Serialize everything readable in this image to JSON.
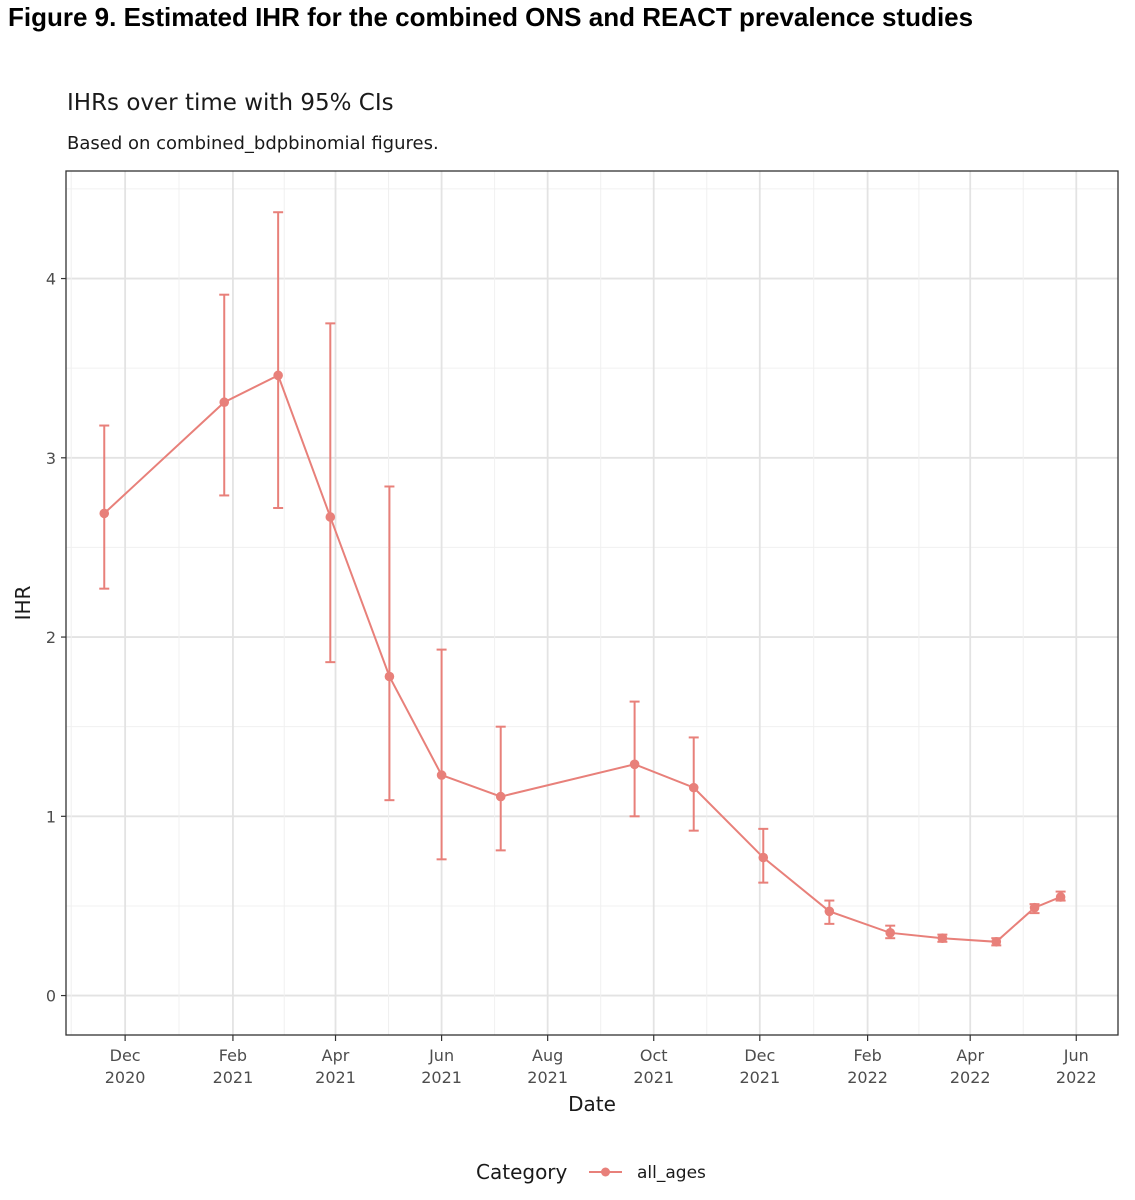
{
  "figure_title": "Figure 9. Estimated IHR for the combined ONS and REACT prevalence studies",
  "chart_data": {
    "type": "line",
    "title": "IHRs over time with 95% CIs",
    "subtitle": "Based on combined_bdpbinomial figures.",
    "xlabel": "Date",
    "ylabel": "IHR",
    "xlim": [
      "2020-10-28",
      "2022-06-25"
    ],
    "ylim": [
      -0.22,
      4.6
    ],
    "y_ticks": [
      0,
      1,
      2,
      3,
      4
    ],
    "x_ticks": [
      {
        "date": "2020-12-01",
        "month": "Dec",
        "year": "2020"
      },
      {
        "date": "2021-02-01",
        "month": "Feb",
        "year": "2021"
      },
      {
        "date": "2021-04-01",
        "month": "Apr",
        "year": "2021"
      },
      {
        "date": "2021-06-01",
        "month": "Jun",
        "year": "2021"
      },
      {
        "date": "2021-08-01",
        "month": "Aug",
        "year": "2021"
      },
      {
        "date": "2021-10-01",
        "month": "Oct",
        "year": "2021"
      },
      {
        "date": "2021-12-01",
        "month": "Dec",
        "year": "2021"
      },
      {
        "date": "2022-02-01",
        "month": "Feb",
        "year": "2022"
      },
      {
        "date": "2022-04-01",
        "month": "Apr",
        "year": "2022"
      },
      {
        "date": "2022-06-01",
        "month": "Jun",
        "year": "2022"
      }
    ],
    "grid": true,
    "legend": {
      "title": "Category",
      "position": "bottom"
    },
    "series": [
      {
        "name": "all_ages",
        "color": "#e8807a",
        "points": [
          {
            "x": "2020-11-19",
            "y": 2.69,
            "lo": 2.27,
            "hi": 3.18
          },
          {
            "x": "2021-01-27",
            "y": 3.31,
            "lo": 2.79,
            "hi": 3.91
          },
          {
            "x": "2021-02-27",
            "y": 3.46,
            "lo": 2.72,
            "hi": 4.37
          },
          {
            "x": "2021-03-29",
            "y": 2.67,
            "lo": 1.86,
            "hi": 3.75
          },
          {
            "x": "2021-05-02",
            "y": 1.78,
            "lo": 1.09,
            "hi": 2.84
          },
          {
            "x": "2021-06-01",
            "y": 1.23,
            "lo": 0.76,
            "hi": 1.93
          },
          {
            "x": "2021-07-05",
            "y": 1.11,
            "lo": 0.81,
            "hi": 1.5
          },
          {
            "x": "2021-09-20",
            "y": 1.29,
            "lo": 1.0,
            "hi": 1.64
          },
          {
            "x": "2021-10-24",
            "y": 1.16,
            "lo": 0.92,
            "hi": 1.44
          },
          {
            "x": "2021-12-03",
            "y": 0.77,
            "lo": 0.63,
            "hi": 0.93
          },
          {
            "x": "2022-01-10",
            "y": 0.47,
            "lo": 0.4,
            "hi": 0.53
          },
          {
            "x": "2022-02-14",
            "y": 0.35,
            "lo": 0.32,
            "hi": 0.39
          },
          {
            "x": "2022-03-16",
            "y": 0.32,
            "lo": 0.3,
            "hi": 0.34
          },
          {
            "x": "2022-04-16",
            "y": 0.3,
            "lo": 0.28,
            "hi": 0.32
          },
          {
            "x": "2022-05-08",
            "y": 0.49,
            "lo": 0.46,
            "hi": 0.51
          },
          {
            "x": "2022-05-23",
            "y": 0.55,
            "lo": 0.53,
            "hi": 0.58
          }
        ]
      }
    ]
  }
}
